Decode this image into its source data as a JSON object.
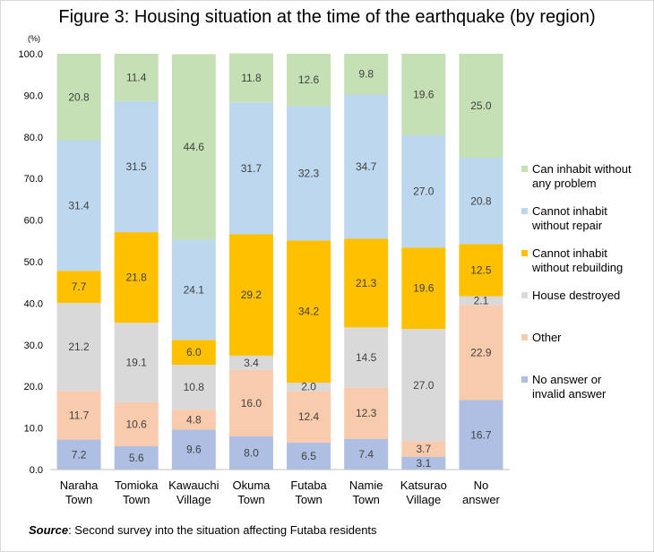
{
  "chart_data": {
    "type": "bar",
    "stacked": true,
    "title": "Figure 3: Housing situation at the time of the earthquake (by region)",
    "yunit": "(%)",
    "ylim": [
      0,
      100
    ],
    "yticks": [
      "0.0",
      "10.0",
      "20.0",
      "30.0",
      "40.0",
      "50.0",
      "60.0",
      "70.0",
      "80.0",
      "90.0",
      "100.0"
    ],
    "categories": [
      [
        "Naraha",
        "Town"
      ],
      [
        "Tomioka",
        "Town"
      ],
      [
        "Kawauchi",
        "Village"
      ],
      [
        "Okuma",
        "Town"
      ],
      [
        "Futaba",
        "Town"
      ],
      [
        "Namie",
        "Town"
      ],
      [
        "Katsurao",
        "Village"
      ],
      [
        "No",
        "answer"
      ]
    ],
    "series": [
      {
        "name": [
          "No answer or",
          "invalid answer"
        ],
        "color": "#aebfe3",
        "values": [
          7.2,
          5.6,
          9.6,
          8.0,
          6.5,
          7.4,
          3.1,
          16.7
        ]
      },
      {
        "name": [
          "Other"
        ],
        "color": "#f8cbad",
        "values": [
          11.7,
          10.6,
          4.8,
          16.0,
          12.4,
          12.3,
          3.7,
          22.9
        ]
      },
      {
        "name": [
          "House destroyed"
        ],
        "color": "#d9d9d9",
        "values": [
          21.2,
          19.1,
          10.8,
          3.4,
          2.0,
          14.5,
          27.0,
          2.1
        ]
      },
      {
        "name": [
          "Cannot inhabit",
          "without rebuilding"
        ],
        "color": "#ffc000",
        "values": [
          7.7,
          21.8,
          6.0,
          29.2,
          34.2,
          21.3,
          19.6,
          12.5
        ]
      },
      {
        "name": [
          "Cannot inhabit",
          "without repair"
        ],
        "color": "#bdd7ee",
        "values": [
          31.4,
          31.5,
          24.1,
          31.7,
          32.3,
          34.7,
          27.0,
          20.8
        ]
      },
      {
        "name": [
          "Can inhabit without",
          "any problem"
        ],
        "color": "#c5e0b4",
        "values": [
          20.8,
          11.4,
          44.6,
          11.8,
          12.6,
          9.8,
          19.6,
          25.0
        ]
      }
    ],
    "legend_position": "right",
    "grid": false
  },
  "source": {
    "label": "Source",
    "text": ": Second survey into the situation affecting Futaba residents"
  }
}
